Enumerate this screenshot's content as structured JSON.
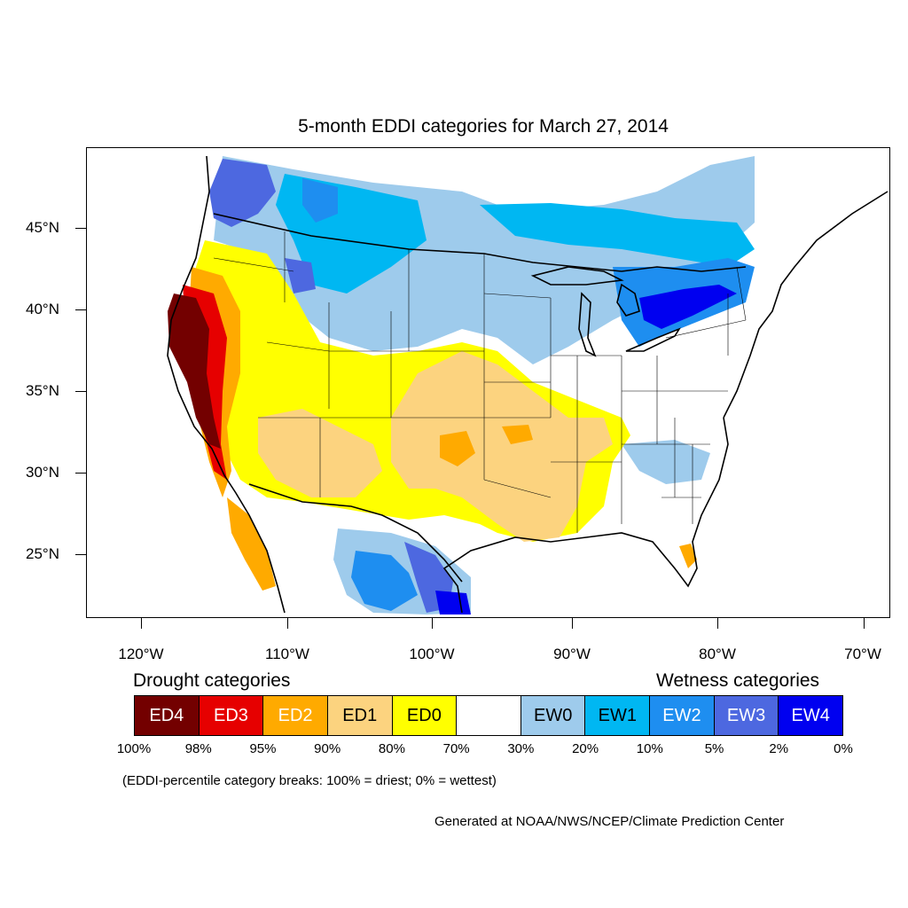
{
  "title": "5-month EDDI categories for March 27, 2014",
  "lat_labels": [
    "45°N",
    "40°N",
    "35°N",
    "30°N",
    "25°N"
  ],
  "lon_labels": [
    "120°W",
    "110°W",
    "100°W",
    "90°W",
    "80°W",
    "70°W"
  ],
  "legend": {
    "drought_title": "Drought categories",
    "wetness_title": "Wetness categories",
    "categories": [
      {
        "label": "ED4",
        "color": "#730000",
        "text_color": "#ffffff"
      },
      {
        "label": "ED3",
        "color": "#e60000",
        "text_color": "#ffffff"
      },
      {
        "label": "ED2",
        "color": "#ffaa00",
        "text_color": "#ffffff"
      },
      {
        "label": "ED1",
        "color": "#fcd37f",
        "text_color": "#000000"
      },
      {
        "label": "ED0",
        "color": "#ffff00",
        "text_color": "#000000"
      },
      {
        "label": "",
        "color": "#ffffff",
        "text_color": "#000000"
      },
      {
        "label": "EW0",
        "color": "#9ecbec",
        "text_color": "#000000"
      },
      {
        "label": "EW1",
        "color": "#00b7f2",
        "text_color": "#000000"
      },
      {
        "label": "EW2",
        "color": "#1e8ef0",
        "text_color": "#ffffff"
      },
      {
        "label": "EW3",
        "color": "#4d68e0",
        "text_color": "#ffffff"
      },
      {
        "label": "EW4",
        "color": "#0000f0",
        "text_color": "#ffffff"
      }
    ],
    "percentiles": [
      "100%",
      "98%",
      "95%",
      "90%",
      "80%",
      "70%",
      "30%",
      "20%",
      "10%",
      "5%",
      "2%",
      "0%"
    ]
  },
  "note": "(EDDI-percentile category breaks: 100% = driest; 0% = wettest)",
  "credit": "Generated at NOAA/NWS/NCEP/Climate Prediction Center"
}
